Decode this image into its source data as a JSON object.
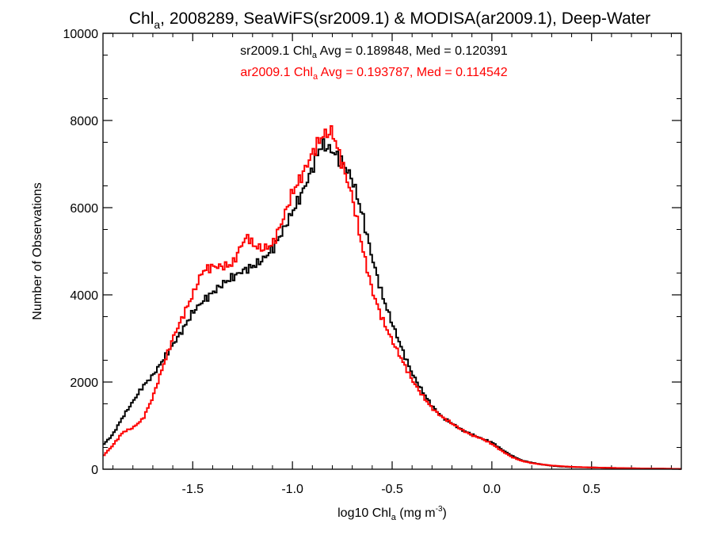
{
  "chart_data": {
    "type": "line",
    "title": {
      "prefix": "Chl",
      "sub": "a",
      "rest": ", 2008289, SeaWiFS(sr2009.1) & MODISA(ar2009.1), Deep-Water"
    },
    "xlabel": {
      "prefix": "log10 Chl",
      "sub": "a",
      "mid": " (mg m",
      "sup": "-3",
      "suffix": ")"
    },
    "ylabel": "Number of Observations",
    "xlim": [
      -1.95,
      0.95
    ],
    "ylim": [
      0,
      10000
    ],
    "x_ticks": [
      -1.5,
      -1.0,
      -0.5,
      0.0,
      0.5
    ],
    "x_tick_labels": [
      "-1.5",
      "-1.0",
      "-0.5",
      "0.0",
      "0.5"
    ],
    "y_ticks": [
      0,
      2000,
      4000,
      6000,
      8000,
      10000
    ],
    "y_tick_labels": [
      "0",
      "2000",
      "4000",
      "6000",
      "8000",
      "10000"
    ],
    "grid": false,
    "step": true,
    "series": [
      {
        "name": "sr2009.1",
        "color": "#000000",
        "annotation": {
          "prefix": "sr2009.1 Chl",
          "sub": "a",
          "rest": " Avg = 0.189848, Med = 0.120391"
        },
        "points": [
          [
            -1.95,
            550
          ],
          [
            -1.9,
            800
          ],
          [
            -1.85,
            1200
          ],
          [
            -1.8,
            1550
          ],
          [
            -1.75,
            1900
          ],
          [
            -1.7,
            2150
          ],
          [
            -1.65,
            2500
          ],
          [
            -1.6,
            2850
          ],
          [
            -1.55,
            3200
          ],
          [
            -1.5,
            3600
          ],
          [
            -1.45,
            3850
          ],
          [
            -1.4,
            4050
          ],
          [
            -1.35,
            4250
          ],
          [
            -1.3,
            4400
          ],
          [
            -1.25,
            4550
          ],
          [
            -1.2,
            4650
          ],
          [
            -1.15,
            4800
          ],
          [
            -1.1,
            5050
          ],
          [
            -1.05,
            5450
          ],
          [
            -1.0,
            5900
          ],
          [
            -0.95,
            6350
          ],
          [
            -0.9,
            6900
          ],
          [
            -0.87,
            7300
          ],
          [
            -0.85,
            7450
          ],
          [
            -0.8,
            7300
          ],
          [
            -0.75,
            7050
          ],
          [
            -0.7,
            6650
          ],
          [
            -0.65,
            5850
          ],
          [
            -0.6,
            4850
          ],
          [
            -0.55,
            4000
          ],
          [
            -0.5,
            3350
          ],
          [
            -0.45,
            2750
          ],
          [
            -0.4,
            2200
          ],
          [
            -0.35,
            1800
          ],
          [
            -0.3,
            1450
          ],
          [
            -0.25,
            1200
          ],
          [
            -0.2,
            1050
          ],
          [
            -0.15,
            900
          ],
          [
            -0.1,
            800
          ],
          [
            -0.05,
            700
          ],
          [
            0.0,
            620
          ],
          [
            0.05,
            450
          ],
          [
            0.1,
            310
          ],
          [
            0.15,
            200
          ],
          [
            0.2,
            150
          ],
          [
            0.25,
            110
          ],
          [
            0.3,
            80
          ],
          [
            0.35,
            60
          ],
          [
            0.4,
            50
          ],
          [
            0.5,
            40
          ],
          [
            0.6,
            30
          ],
          [
            0.7,
            20
          ],
          [
            0.8,
            15
          ],
          [
            0.9,
            10
          ],
          [
            0.95,
            8
          ]
        ]
      },
      {
        "name": "ar2009.1",
        "color": "#ff0000",
        "annotation": {
          "prefix": "ar2009.1 Chl",
          "sub": "a",
          "rest": " Avg = 0.193787, Med = 0.114542"
        },
        "points": [
          [
            -1.95,
            300
          ],
          [
            -1.9,
            550
          ],
          [
            -1.85,
            850
          ],
          [
            -1.8,
            950
          ],
          [
            -1.75,
            1150
          ],
          [
            -1.7,
            1650
          ],
          [
            -1.65,
            2350
          ],
          [
            -1.6,
            3000
          ],
          [
            -1.55,
            3500
          ],
          [
            -1.5,
            4000
          ],
          [
            -1.45,
            4550
          ],
          [
            -1.4,
            4650
          ],
          [
            -1.35,
            4650
          ],
          [
            -1.3,
            4700
          ],
          [
            -1.25,
            5200
          ],
          [
            -1.22,
            5350
          ],
          [
            -1.2,
            5150
          ],
          [
            -1.15,
            5050
          ],
          [
            -1.1,
            5150
          ],
          [
            -1.05,
            5700
          ],
          [
            -1.0,
            6350
          ],
          [
            -0.95,
            6750
          ],
          [
            -0.9,
            7250
          ],
          [
            -0.85,
            7650
          ],
          [
            -0.8,
            7750
          ],
          [
            -0.75,
            7000
          ],
          [
            -0.7,
            6250
          ],
          [
            -0.65,
            5100
          ],
          [
            -0.6,
            4100
          ],
          [
            -0.55,
            3450
          ],
          [
            -0.5,
            2950
          ],
          [
            -0.45,
            2500
          ],
          [
            -0.4,
            2050
          ],
          [
            -0.35,
            1700
          ],
          [
            -0.3,
            1400
          ],
          [
            -0.25,
            1200
          ],
          [
            -0.2,
            1050
          ],
          [
            -0.15,
            900
          ],
          [
            -0.1,
            780
          ],
          [
            -0.05,
            700
          ],
          [
            0.0,
            580
          ],
          [
            0.05,
            420
          ],
          [
            0.1,
            280
          ],
          [
            0.15,
            190
          ],
          [
            0.2,
            140
          ],
          [
            0.25,
            110
          ],
          [
            0.3,
            85
          ],
          [
            0.35,
            70
          ],
          [
            0.4,
            55
          ],
          [
            0.5,
            40
          ],
          [
            0.6,
            30
          ],
          [
            0.7,
            22
          ],
          [
            0.8,
            15
          ],
          [
            0.9,
            10
          ],
          [
            0.95,
            8
          ]
        ]
      }
    ]
  }
}
